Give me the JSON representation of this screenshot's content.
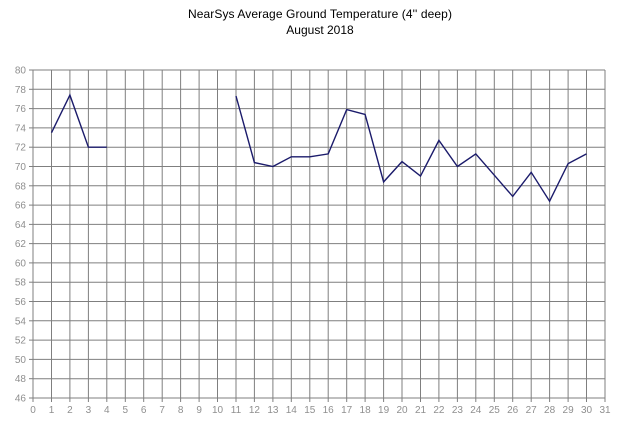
{
  "title": "NearSys Average Ground Temperature (4'' deep)",
  "subtitle": "August 2018",
  "chart_data": {
    "type": "line",
    "title": "NearSys Average Ground Temperature (4'' deep)",
    "subtitle": "August 2018",
    "xlabel": "",
    "ylabel": "",
    "xlim": [
      0,
      31
    ],
    "ylim": [
      46,
      80
    ],
    "y_step": 2,
    "grid": true,
    "legend": "none",
    "x_ticks": [
      "0",
      "1",
      "2",
      "3",
      "4",
      "5",
      "6",
      "7",
      "8",
      "9",
      "10",
      "11",
      "12",
      "13",
      "14",
      "15",
      "16",
      "17",
      "18",
      "19",
      "20",
      "21",
      "22",
      "23",
      "24",
      "25",
      "26",
      "27",
      "28",
      "29",
      "30",
      "31"
    ],
    "y_ticks": [
      80,
      78,
      76,
      74,
      72,
      70,
      68,
      66,
      64,
      62,
      60,
      58,
      56,
      54,
      52,
      50,
      48,
      46
    ],
    "series": [
      {
        "name": "average-ground-temperature",
        "x_start_day": 1,
        "values_by_day": [
          73.5,
          77.4,
          72,
          72,
          null,
          null,
          null,
          null,
          null,
          null,
          77.3,
          70.4,
          70,
          71,
          71,
          71.3,
          75.9,
          75.4,
          68.4,
          70.5,
          69,
          72.7,
          70,
          71.3,
          69.1,
          66.9,
          69.4,
          66.4,
          70.3,
          71.3,
          null
        ]
      }
    ],
    "colors": {
      "line": "#1b1b6b",
      "grid": "#7f7f7f",
      "tick_label": "#8f8f8f",
      "title_text": "#000000",
      "background": "#ffffff"
    }
  }
}
